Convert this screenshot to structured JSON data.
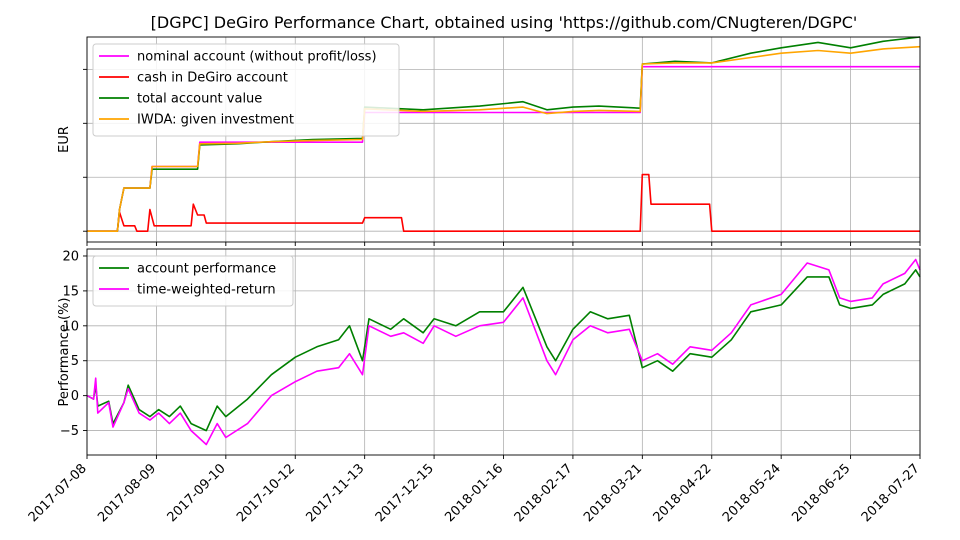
{
  "chart_data": [
    {
      "type": "line",
      "title": "[DGPC] DeGiro Performance Chart, obtained using 'https://github.com/CNugteren/DGPC'",
      "xlabel": "",
      "ylabel": "EUR",
      "x_ticks": [
        "2017-07-08",
        "2017-08-09",
        "2017-09-10",
        "2017-10-12",
        "2017-11-13",
        "2017-12-15",
        "2018-01-16",
        "2018-02-17",
        "2018-03-21",
        "2018-04-22",
        "2018-05-24",
        "2018-06-25",
        "2018-07-27"
      ],
      "xlim": [
        "2017-07-08",
        "2018-07-27"
      ],
      "ylim": [
        -0.2,
        3.6
      ],
      "y_tick_values": [
        0,
        1,
        2,
        3
      ],
      "y_tick_labels_visible": false,
      "grid": true,
      "legend_position": "top-left",
      "series": [
        {
          "name": "nominal account (without profit/loss)",
          "color": "#ff00ff",
          "points": [
            [
              "2017-07-08",
              0
            ],
            [
              "2017-07-22",
              0
            ],
            [
              "2017-07-23",
              0.4
            ],
            [
              "2017-07-25",
              0.8
            ],
            [
              "2017-08-06",
              0.8
            ],
            [
              "2017-08-07",
              1.2
            ],
            [
              "2017-08-28",
              1.2
            ],
            [
              "2017-08-29",
              1.65
            ],
            [
              "2017-11-12",
              1.65
            ],
            [
              "2017-11-13",
              2.2
            ],
            [
              "2018-03-20",
              2.2
            ],
            [
              "2018-03-21",
              3.05
            ],
            [
              "2018-07-27",
              3.05
            ]
          ]
        },
        {
          "name": "cash in DeGiro account",
          "color": "#ff0000",
          "points": [
            [
              "2017-07-08",
              0
            ],
            [
              "2017-07-22",
              0
            ],
            [
              "2017-07-23",
              0.35
            ],
            [
              "2017-07-25",
              0.1
            ],
            [
              "2017-07-30",
              0.1
            ],
            [
              "2017-07-31",
              0
            ],
            [
              "2017-08-05",
              0
            ],
            [
              "2017-08-06",
              0.4
            ],
            [
              "2017-08-08",
              0.1
            ],
            [
              "2017-08-25",
              0.1
            ],
            [
              "2017-08-26",
              0.5
            ],
            [
              "2017-08-28",
              0.3
            ],
            [
              "2017-08-31",
              0.3
            ],
            [
              "2017-09-01",
              0.15
            ],
            [
              "2017-11-12",
              0.15
            ],
            [
              "2017-11-13",
              0.25
            ],
            [
              "2017-11-30",
              0.25
            ],
            [
              "2017-12-01",
              0
            ],
            [
              "2018-03-20",
              0
            ],
            [
              "2018-03-21",
              1.05
            ],
            [
              "2018-03-24",
              1.05
            ],
            [
              "2018-03-25",
              0.5
            ],
            [
              "2018-04-21",
              0.5
            ],
            [
              "2018-04-22",
              0
            ],
            [
              "2018-07-27",
              0
            ]
          ]
        },
        {
          "name": "total account value",
          "color": "#008000",
          "points": [
            [
              "2017-07-08",
              0
            ],
            [
              "2017-07-22",
              0
            ],
            [
              "2017-07-23",
              0.4
            ],
            [
              "2017-07-25",
              0.8
            ],
            [
              "2017-08-06",
              0.8
            ],
            [
              "2017-08-07",
              1.15
            ],
            [
              "2017-08-28",
              1.15
            ],
            [
              "2017-08-29",
              1.6
            ],
            [
              "2017-09-15",
              1.62
            ],
            [
              "2017-10-01",
              1.66
            ],
            [
              "2017-10-20",
              1.7
            ],
            [
              "2017-11-12",
              1.72
            ],
            [
              "2017-11-13",
              2.3
            ],
            [
              "2017-12-10",
              2.25
            ],
            [
              "2018-01-05",
              2.32
            ],
            [
              "2018-01-25",
              2.4
            ],
            [
              "2018-02-05",
              2.25
            ],
            [
              "2018-02-17",
              2.3
            ],
            [
              "2018-03-01",
              2.32
            ],
            [
              "2018-03-20",
              2.28
            ],
            [
              "2018-03-21",
              3.1
            ],
            [
              "2018-04-05",
              3.15
            ],
            [
              "2018-04-22",
              3.12
            ],
            [
              "2018-05-10",
              3.3
            ],
            [
              "2018-05-24",
              3.4
            ],
            [
              "2018-06-10",
              3.5
            ],
            [
              "2018-06-25",
              3.4
            ],
            [
              "2018-07-10",
              3.52
            ],
            [
              "2018-07-27",
              3.6
            ]
          ]
        },
        {
          "name": "IWDA: given investment",
          "color": "#ffa500",
          "points": [
            [
              "2017-07-08",
              0
            ],
            [
              "2017-07-22",
              0
            ],
            [
              "2017-07-23",
              0.4
            ],
            [
              "2017-07-25",
              0.8
            ],
            [
              "2017-08-06",
              0.8
            ],
            [
              "2017-08-07",
              1.2
            ],
            [
              "2017-08-28",
              1.2
            ],
            [
              "2017-08-29",
              1.62
            ],
            [
              "2017-09-15",
              1.63
            ],
            [
              "2017-10-01",
              1.66
            ],
            [
              "2017-10-20",
              1.68
            ],
            [
              "2017-11-12",
              1.7
            ],
            [
              "2017-11-13",
              2.27
            ],
            [
              "2017-12-10",
              2.22
            ],
            [
              "2018-01-05",
              2.25
            ],
            [
              "2018-01-25",
              2.3
            ],
            [
              "2018-02-05",
              2.18
            ],
            [
              "2018-02-17",
              2.22
            ],
            [
              "2018-03-01",
              2.24
            ],
            [
              "2018-03-20",
              2.22
            ],
            [
              "2018-03-21",
              3.1
            ],
            [
              "2018-04-05",
              3.12
            ],
            [
              "2018-04-22",
              3.12
            ],
            [
              "2018-05-10",
              3.22
            ],
            [
              "2018-05-24",
              3.3
            ],
            [
              "2018-06-10",
              3.35
            ],
            [
              "2018-06-25",
              3.3
            ],
            [
              "2018-07-10",
              3.38
            ],
            [
              "2018-07-27",
              3.42
            ]
          ]
        }
      ]
    },
    {
      "type": "line",
      "title": "",
      "xlabel": "",
      "ylabel": "Performance (%)",
      "x_ticks": [
        "2017-07-08",
        "2017-08-09",
        "2017-09-10",
        "2017-10-12",
        "2017-11-13",
        "2017-12-15",
        "2018-01-16",
        "2018-02-17",
        "2018-03-21",
        "2018-04-22",
        "2018-05-24",
        "2018-06-25",
        "2018-07-27"
      ],
      "xlim": [
        "2017-07-08",
        "2018-07-27"
      ],
      "ylim": [
        -8.5,
        21
      ],
      "y_ticks": [
        -5,
        0,
        5,
        10,
        15,
        20
      ],
      "grid": true,
      "legend_position": "top-left",
      "series": [
        {
          "name": "account performance",
          "color": "#008000",
          "points": [
            [
              "2017-07-08",
              0
            ],
            [
              "2017-07-11",
              -0.5
            ],
            [
              "2017-07-12",
              1.5
            ],
            [
              "2017-07-13",
              -1.5
            ],
            [
              "2017-07-18",
              -0.8
            ],
            [
              "2017-07-20",
              -4
            ],
            [
              "2017-07-25",
              -1
            ],
            [
              "2017-07-27",
              1.5
            ],
            [
              "2017-08-01",
              -2
            ],
            [
              "2017-08-06",
              -3
            ],
            [
              "2017-08-10",
              -2
            ],
            [
              "2017-08-15",
              -3
            ],
            [
              "2017-08-20",
              -1.5
            ],
            [
              "2017-08-25",
              -4
            ],
            [
              "2017-09-01",
              -5
            ],
            [
              "2017-09-06",
              -1.5
            ],
            [
              "2017-09-10",
              -3
            ],
            [
              "2017-09-20",
              -0.5
            ],
            [
              "2017-10-01",
              3
            ],
            [
              "2017-10-12",
              5.5
            ],
            [
              "2017-10-22",
              7
            ],
            [
              "2017-11-01",
              8
            ],
            [
              "2017-11-06",
              10
            ],
            [
              "2017-11-12",
              5
            ],
            [
              "2017-11-15",
              11
            ],
            [
              "2017-11-25",
              9.5
            ],
            [
              "2017-12-01",
              11
            ],
            [
              "2017-12-10",
              9
            ],
            [
              "2017-12-15",
              11
            ],
            [
              "2017-12-25",
              10
            ],
            [
              "2018-01-05",
              12
            ],
            [
              "2018-01-16",
              12
            ],
            [
              "2018-01-25",
              15.5
            ],
            [
              "2018-02-05",
              7
            ],
            [
              "2018-02-09",
              5
            ],
            [
              "2018-02-17",
              9.5
            ],
            [
              "2018-02-25",
              12
            ],
            [
              "2018-03-05",
              11
            ],
            [
              "2018-03-15",
              11.5
            ],
            [
              "2018-03-21",
              4
            ],
            [
              "2018-03-28",
              5
            ],
            [
              "2018-04-04",
              3.5
            ],
            [
              "2018-04-12",
              6
            ],
            [
              "2018-04-22",
              5.5
            ],
            [
              "2018-05-01",
              8
            ],
            [
              "2018-05-10",
              12
            ],
            [
              "2018-05-24",
              13
            ],
            [
              "2018-06-05",
              17
            ],
            [
              "2018-06-15",
              17
            ],
            [
              "2018-06-20",
              13
            ],
            [
              "2018-06-25",
              12.5
            ],
            [
              "2018-07-05",
              13
            ],
            [
              "2018-07-10",
              14.5
            ],
            [
              "2018-07-20",
              16
            ],
            [
              "2018-07-25",
              18
            ],
            [
              "2018-07-27",
              17
            ]
          ]
        },
        {
          "name": "time-weighted-return",
          "color": "#ff00ff",
          "points": [
            [
              "2017-07-08",
              0
            ],
            [
              "2017-07-11",
              -0.5
            ],
            [
              "2017-07-12",
              2.5
            ],
            [
              "2017-07-13",
              -2.5
            ],
            [
              "2017-07-18",
              -1
            ],
            [
              "2017-07-20",
              -4.5
            ],
            [
              "2017-07-25",
              -1
            ],
            [
              "2017-07-27",
              1
            ],
            [
              "2017-08-01",
              -2.5
            ],
            [
              "2017-08-06",
              -3.5
            ],
            [
              "2017-08-10",
              -2.5
            ],
            [
              "2017-08-15",
              -4
            ],
            [
              "2017-08-20",
              -2.5
            ],
            [
              "2017-08-25",
              -5
            ],
            [
              "2017-09-01",
              -7
            ],
            [
              "2017-09-06",
              -4
            ],
            [
              "2017-09-10",
              -6
            ],
            [
              "2017-09-20",
              -4
            ],
            [
              "2017-10-01",
              0
            ],
            [
              "2017-10-12",
              2
            ],
            [
              "2017-10-22",
              3.5
            ],
            [
              "2017-11-01",
              4
            ],
            [
              "2017-11-06",
              6
            ],
            [
              "2017-11-12",
              3
            ],
            [
              "2017-11-15",
              10
            ],
            [
              "2017-11-25",
              8.5
            ],
            [
              "2017-12-01",
              9
            ],
            [
              "2017-12-10",
              7.5
            ],
            [
              "2017-12-15",
              10
            ],
            [
              "2017-12-25",
              8.5
            ],
            [
              "2018-01-05",
              10
            ],
            [
              "2018-01-16",
              10.5
            ],
            [
              "2018-01-25",
              14
            ],
            [
              "2018-02-05",
              5
            ],
            [
              "2018-02-09",
              3
            ],
            [
              "2018-02-17",
              8
            ],
            [
              "2018-02-25",
              10
            ],
            [
              "2018-03-05",
              9
            ],
            [
              "2018-03-15",
              9.5
            ],
            [
              "2018-03-21",
              5
            ],
            [
              "2018-03-28",
              6
            ],
            [
              "2018-04-04",
              4.5
            ],
            [
              "2018-04-12",
              7
            ],
            [
              "2018-04-22",
              6.5
            ],
            [
              "2018-05-01",
              9
            ],
            [
              "2018-05-10",
              13
            ],
            [
              "2018-05-24",
              14.5
            ],
            [
              "2018-06-05",
              19
            ],
            [
              "2018-06-15",
              18
            ],
            [
              "2018-06-20",
              14
            ],
            [
              "2018-06-25",
              13.5
            ],
            [
              "2018-07-05",
              14
            ],
            [
              "2018-07-10",
              16
            ],
            [
              "2018-07-20",
              17.5
            ],
            [
              "2018-07-25",
              19.5
            ],
            [
              "2018-07-27",
              18
            ]
          ]
        }
      ]
    }
  ]
}
